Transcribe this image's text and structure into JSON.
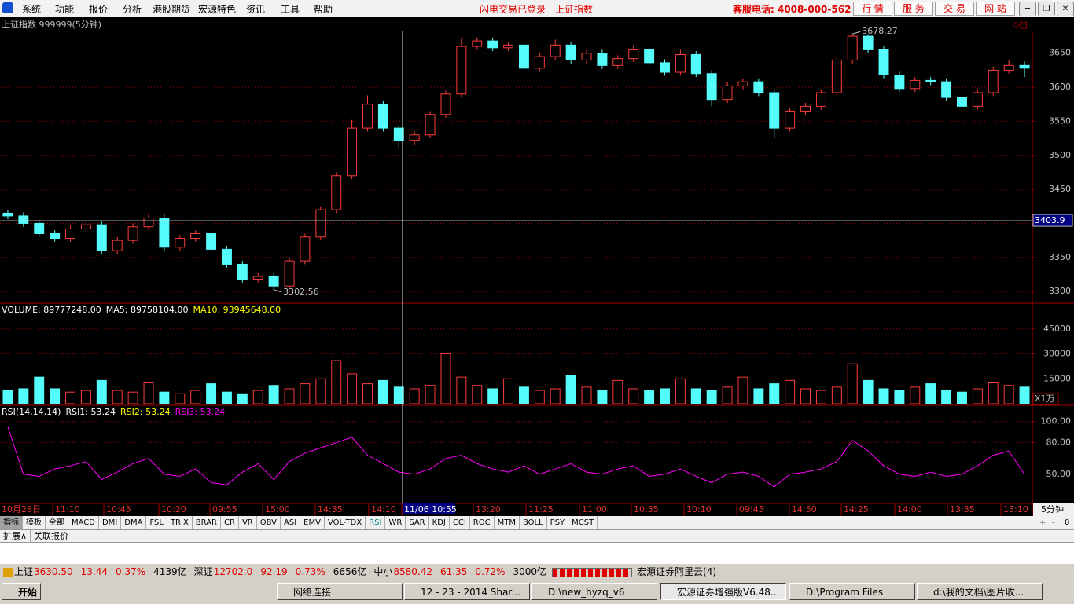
{
  "menu": {
    "items": [
      "系统",
      "功能",
      "报价",
      "分析",
      "港股期货",
      "宏源特色",
      "资讯",
      "工具",
      "帮助"
    ],
    "notices": [
      "闪电交易已登录",
      "上证指数"
    ],
    "hotline": "客服电话: 4008-000-562",
    "buttons": [
      "行 情",
      "服 务",
      "交 易",
      "网 站"
    ]
  },
  "chart": {
    "title": "上证指数 999999(5分钟)",
    "price": {
      "open": [
        3415,
        3411,
        3400,
        3385,
        3378,
        3392,
        3398,
        3360,
        3375,
        3395,
        3408,
        3365,
        3378,
        3385,
        3362,
        3340,
        3318,
        3322,
        3308,
        3345,
        3380,
        3420,
        3470,
        3540,
        3575,
        3540,
        3522,
        3530,
        3560,
        3590,
        3660,
        3668,
        3658,
        3662,
        3628,
        3645,
        3662,
        3640,
        3650,
        3632,
        3642,
        3655,
        3636,
        3622,
        3648,
        3620,
        3582,
        3602,
        3608,
        3592,
        3540,
        3565,
        3572,
        3592,
        3640,
        3675,
        3655,
        3618,
        3598,
        3610,
        3608,
        3585,
        3572,
        3592,
        3625,
        3632
      ],
      "high": [
        3420,
        3416,
        3405,
        3390,
        3397,
        3403,
        3403,
        3380,
        3400,
        3413,
        3413,
        3383,
        3390,
        3390,
        3367,
        3345,
        3327,
        3327,
        3350,
        3385,
        3425,
        3475,
        3552,
        3588,
        3580,
        3545,
        3535,
        3565,
        3595,
        3672,
        3673,
        3673,
        3667,
        3667,
        3650,
        3670,
        3667,
        3655,
        3655,
        3647,
        3662,
        3660,
        3641,
        3655,
        3653,
        3625,
        3607,
        3613,
        3613,
        3597,
        3570,
        3577,
        3597,
        3645,
        3678.27,
        3678,
        3660,
        3623,
        3615,
        3615,
        3613,
        3590,
        3597,
        3630,
        3640,
        3638
      ],
      "low": [
        3406,
        3395,
        3380,
        3373,
        3373,
        3387,
        3355,
        3355,
        3370,
        3390,
        3360,
        3360,
        3373,
        3357,
        3335,
        3313,
        3313,
        3302.56,
        3303,
        3340,
        3375,
        3415,
        3465,
        3535,
        3535,
        3510,
        3515,
        3525,
        3555,
        3585,
        3655,
        3653,
        3653,
        3623,
        3623,
        3640,
        3635,
        3635,
        3627,
        3627,
        3637,
        3631,
        3617,
        3617,
        3615,
        3572,
        3577,
        3597,
        3587,
        3525,
        3535,
        3560,
        3567,
        3587,
        3635,
        3650,
        3613,
        3593,
        3593,
        3603,
        3580,
        3563,
        3567,
        3587,
        3620,
        3615
      ],
      "close": [
        3411,
        3400,
        3385,
        3378,
        3392,
        3398,
        3360,
        3375,
        3395,
        3408,
        3365,
        3378,
        3385,
        3362,
        3340,
        3318,
        3322,
        3308,
        3345,
        3380,
        3420,
        3470,
        3540,
        3575,
        3540,
        3522,
        3530,
        3560,
        3590,
        3660,
        3668,
        3658,
        3662,
        3628,
        3645,
        3662,
        3640,
        3650,
        3632,
        3642,
        3655,
        3636,
        3622,
        3648,
        3620,
        3582,
        3602,
        3608,
        3592,
        3540,
        3565,
        3572,
        3592,
        3640,
        3675,
        3655,
        3618,
        3598,
        3610,
        3608,
        3585,
        3572,
        3592,
        3625,
        3632,
        3628
      ],
      "up_color": "#ff3c3c",
      "down_color": "#54fcfc",
      "ylim": [
        3284,
        3682
      ],
      "yticks": [
        3300,
        3350,
        3400,
        3450,
        3500,
        3550,
        3600,
        3650
      ],
      "cursor": 3403.9
    },
    "volume": {
      "legend": [
        "VOLUME: 89777248.00",
        "MA5: 89758104.00",
        "MA10: 93945648.00"
      ],
      "legend_colors": [
        "#ffffff",
        "#ffffff",
        "#ffff00"
      ],
      "values": [
        8000,
        9000,
        16000,
        9000,
        7000,
        8000,
        14000,
        8000,
        7000,
        13000,
        7000,
        6000,
        8000,
        12000,
        7000,
        6000,
        8000,
        11000,
        9000,
        12000,
        15000,
        26000,
        18000,
        12000,
        14000,
        10000,
        9000,
        11000,
        30000,
        16000,
        11000,
        9000,
        15000,
        10000,
        8000,
        9000,
        17000,
        10000,
        8000,
        14000,
        9000,
        8000,
        9000,
        15000,
        9000,
        8000,
        10000,
        16000,
        9000,
        12000,
        14000,
        9000,
        8000,
        10000,
        24000,
        14000,
        9000,
        8000,
        10000,
        12000,
        8000,
        7000,
        9000,
        13000,
        11000,
        10000
      ],
      "ylim": [
        0,
        52000
      ],
      "yticks": [
        15000,
        30000,
        45000
      ],
      "unit": "X1万"
    },
    "rsi": {
      "legend": [
        "RSI(14,14,14)",
        "RSI1: 53.24",
        "RSI2: 53.24",
        "RSI3: 53.24"
      ],
      "legend_colors": [
        "#ffffff",
        "#ffffff",
        "#ffff00",
        "#ff00ff"
      ],
      "values": [
        95,
        50,
        48,
        55,
        58,
        62,
        45,
        52,
        60,
        65,
        50,
        48,
        55,
        42,
        40,
        52,
        60,
        45,
        62,
        70,
        75,
        80,
        85,
        68,
        60,
        52,
        50,
        55,
        65,
        68,
        60,
        55,
        52,
        58,
        50,
        55,
        60,
        52,
        50,
        55,
        58,
        48,
        50,
        55,
        48,
        42,
        50,
        52,
        48,
        38,
        50,
        52,
        55,
        62,
        82,
        72,
        58,
        50,
        48,
        52,
        48,
        50,
        58,
        68,
        72,
        50
      ],
      "color": "#ff00ff",
      "ylim": [
        23,
        105
      ],
      "yticks": [
        {
          "value": 50,
          "label": "50.00"
        },
        {
          "value": 80,
          "label": "80.00"
        },
        {
          "value": 100,
          "label": "100.00"
        }
      ]
    },
    "time_labels": [
      "10月28日",
      "11:10",
      "10:45",
      "10:20",
      "09:55",
      "15:00",
      "14:35",
      "14:10",
      "11/06 10:55",
      "13:20",
      "11:25",
      "11:00",
      "10:35",
      "10:10",
      "09:45",
      "14:50",
      "14:25",
      "14:00",
      "13:35",
      "13:10"
    ],
    "period": "5分钟"
  },
  "tabs": [
    "指标",
    "模板",
    "全部",
    "MACD",
    "DMI",
    "DMA",
    "FSL",
    "TRIX",
    "BRAR",
    "CR",
    "VR",
    "OBV",
    "ASI",
    "EMV",
    "VOL-TDX",
    "RSI",
    "WR",
    "SAR",
    "KDJ",
    "CCI",
    "ROC",
    "MTM",
    "BOLL",
    "PSY",
    "MCST"
  ],
  "controls": [
    "+",
    "-",
    "0"
  ],
  "subtabs": [
    "扩展∧",
    "关联报价"
  ],
  "status": {
    "items": [
      {
        "text": "上证",
        "color": "#000000"
      },
      {
        "text": "3630.50",
        "color": "#e00000"
      },
      {
        "text": "13.44",
        "color": "#e00000"
      },
      {
        "text": "0.37%",
        "color": "#e00000"
      },
      {
        "text": "4139亿",
        "color": "#000000"
      },
      {
        "text": "深证",
        "color": "#000000"
      },
      {
        "text": "12702.0",
        "color": "#e00000"
      },
      {
        "text": "92.19",
        "color": "#e00000"
      },
      {
        "text": "0.73%",
        "color": "#e00000"
      },
      {
        "text": "6656亿",
        "color": "#000000"
      },
      {
        "text": "中小",
        "color": "#000000"
      },
      {
        "text": "8580.42",
        "color": "#e00000"
      },
      {
        "text": "61.35",
        "color": "#e00000"
      },
      {
        "text": "0.72%",
        "color": "#e00000"
      },
      {
        "text": "3000亿",
        "color": "#000000"
      }
    ],
    "server": "宏源证券阿里云(4)"
  },
  "taskbar": {
    "start": "开始",
    "tasks": [
      "网络连接",
      "12 - 23 - 2014 Shar...",
      "D:\\new_hyzq_v6",
      "宏源证券增强版V6.48...",
      "D:\\Program Files",
      "d:\\我的文档\\图片收..."
    ]
  }
}
